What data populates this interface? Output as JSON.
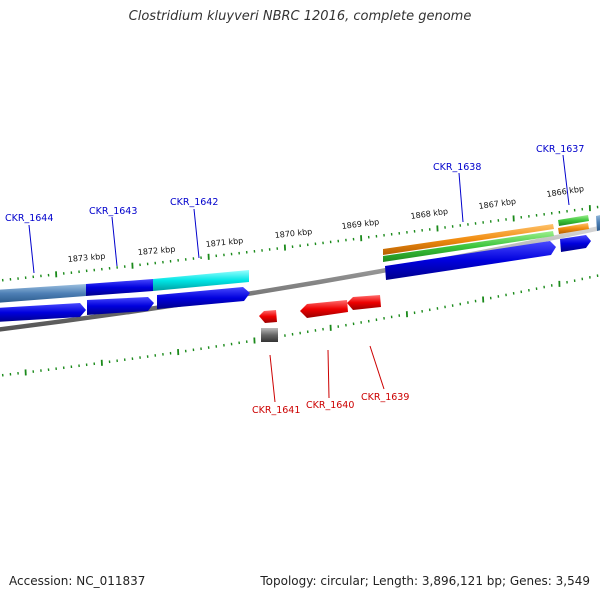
{
  "title": "Clostridium kluyveri NBRC 12016, complete genome",
  "footer": {
    "accession": "Accession: NC_011837",
    "summary": "Topology: circular; Length: 3,896,121 bp; Genes: 3,549"
  },
  "colors": {
    "forward_label": "#0000cc",
    "reverse_label": "#cc0000",
    "tick": "#1a8a1a",
    "backbone": "#808080"
  },
  "kbp_labels": [
    "1873 kbp",
    "1872 kbp",
    "1871 kbp",
    "1870 kbp",
    "1869 kbp",
    "1868 kbp",
    "1867 kbp",
    "1866 kbp"
  ],
  "forward_genes": [
    "CKR_1644",
    "CKR_1643",
    "CKR_1642",
    "CKR_1638",
    "CKR_1637"
  ],
  "reverse_genes": [
    "CKR_1641",
    "CKR_1640",
    "CKR_1639"
  ]
}
